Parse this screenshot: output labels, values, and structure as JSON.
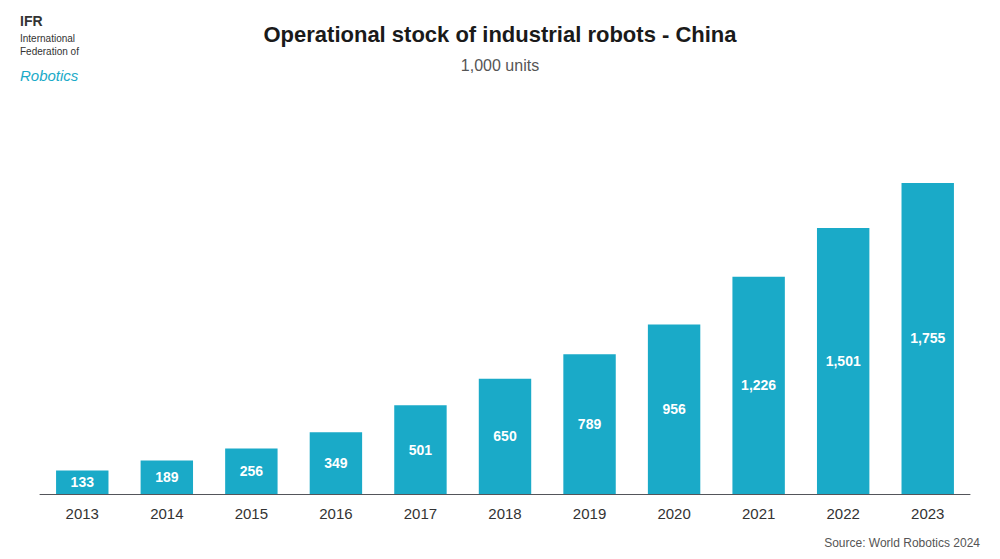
{
  "chart_data": {
    "type": "bar",
    "title": "Operational stock of industrial robots - China",
    "subtitle": "1,000 units",
    "annotations": [
      {
        "text": "Source: World Robotics 2024"
      },
      {
        "text": "IFR"
      },
      {
        "text": "International\nFederation of"
      },
      {
        "text": "Robotics",
        "color": "#1aaac8"
      }
    ],
    "categories": [
      "2013",
      "2014",
      "2015",
      "2016",
      "2017",
      "2018",
      "2019",
      "2020",
      "2021",
      "2022",
      "2023"
    ],
    "values": [
      133,
      189,
      256,
      349,
      501,
      650,
      789,
      956,
      1226,
      1501,
      1755
    ],
    "value_labels": [
      "133",
      "189",
      "256",
      "349",
      "501",
      "650",
      "789",
      "956",
      "1,226",
      "1,501",
      "1,755"
    ],
    "color": "#1aaac8",
    "ylim": [
      0,
      2053.35
    ],
    "data_labels": true,
    "tick_labels": "x",
    "grid": false
  }
}
